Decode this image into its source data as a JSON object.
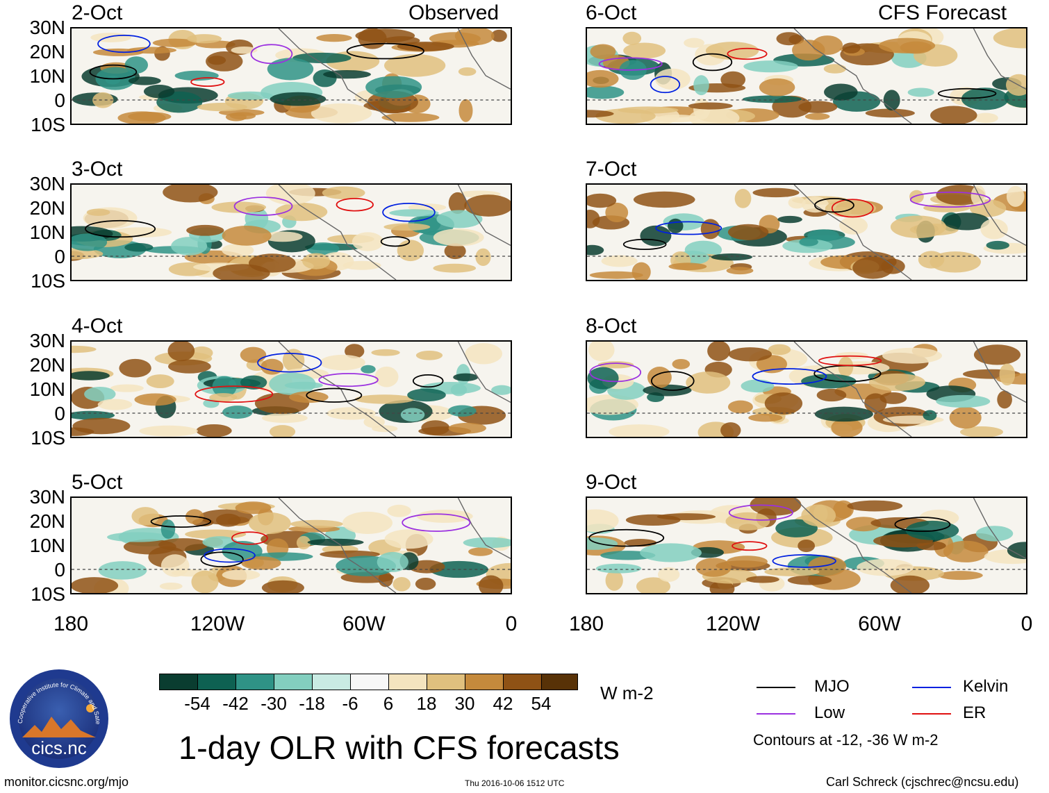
{
  "headers": {
    "left": "Observed",
    "right": "CFS Forecast"
  },
  "panels_left": [
    {
      "date": "2-Oct"
    },
    {
      "date": "3-Oct"
    },
    {
      "date": "4-Oct"
    },
    {
      "date": "5-Oct"
    }
  ],
  "panels_right": [
    {
      "date": "6-Oct"
    },
    {
      "date": "7-Oct"
    },
    {
      "date": "8-Oct"
    },
    {
      "date": "9-Oct"
    }
  ],
  "lat_labels": [
    "30N",
    "20N",
    "10N",
    "0",
    "10S"
  ],
  "lon_labels": [
    "180",
    "120W",
    "60W",
    "0"
  ],
  "colorbar": {
    "colors": [
      "#0a3d30",
      "#0e6152",
      "#2f9386",
      "#83cfbf",
      "#c9ebe3",
      "#f7f7f7",
      "#f4e4bf",
      "#e0c07e",
      "#c58a3c",
      "#8f5215",
      "#583207"
    ],
    "tick_labels": [
      "-54",
      "-42",
      "-30",
      "-18",
      "-6",
      "6",
      "18",
      "30",
      "42",
      "54"
    ],
    "units": "W m-2"
  },
  "legend": {
    "items": [
      {
        "label": "MJO",
        "color": "#000000"
      },
      {
        "label": "Kelvin",
        "color": "#0020e0"
      },
      {
        "label": "Low",
        "color": "#9b30e0"
      },
      {
        "label": "ER",
        "color": "#e01010"
      }
    ],
    "note": "Contours at -12, -36 W m-2"
  },
  "title": "1-day OLR with CFS forecasts",
  "logo_text": "cics.nc",
  "logo_ring_text": "Cooperative Institute for Climate and Satellites",
  "footer": {
    "url": "monitor.cicsnc.org/mjo",
    "timestamp": "Thu 2016-10-06 1512 UTC",
    "author": "Carl Schreck (cjschrec@ncsu.edu)"
  }
}
